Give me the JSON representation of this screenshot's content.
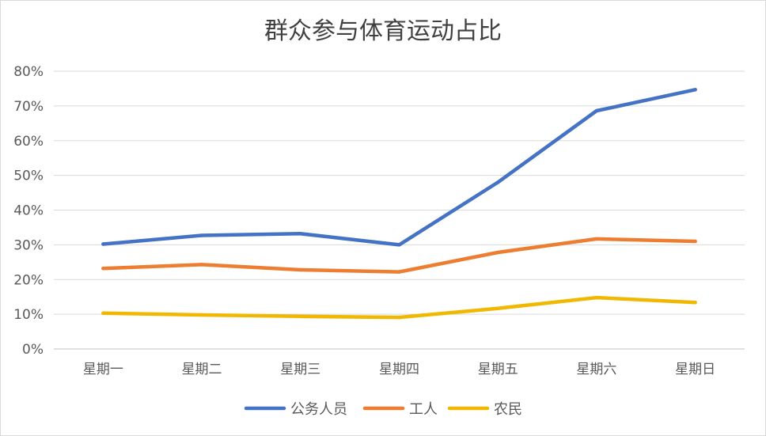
{
  "chart_data": {
    "type": "line",
    "title": "群众参与体育运动占比",
    "categories": [
      "星期一",
      "星期二",
      "星期三",
      "星期四",
      "星期五",
      "星期六",
      "星期日"
    ],
    "yticks": [
      "0%",
      "10%",
      "20%",
      "30%",
      "40%",
      "50%",
      "60%",
      "70%",
      "80%"
    ],
    "ylim": [
      0,
      0.8
    ],
    "grid": true,
    "legend": "bottom",
    "series": [
      {
        "name": "公务人员",
        "color": "#4472C4",
        "values": [
          0.302,
          0.327,
          0.332,
          0.3,
          0.48,
          0.686,
          0.747
        ]
      },
      {
        "name": "工人",
        "color": "#ED7D31",
        "values": [
          0.232,
          0.243,
          0.228,
          0.222,
          0.278,
          0.317,
          0.31
        ]
      },
      {
        "name": "农民",
        "color": "#F0B800",
        "values": [
          0.103,
          0.098,
          0.094,
          0.091,
          0.117,
          0.148,
          0.134
        ]
      }
    ]
  }
}
